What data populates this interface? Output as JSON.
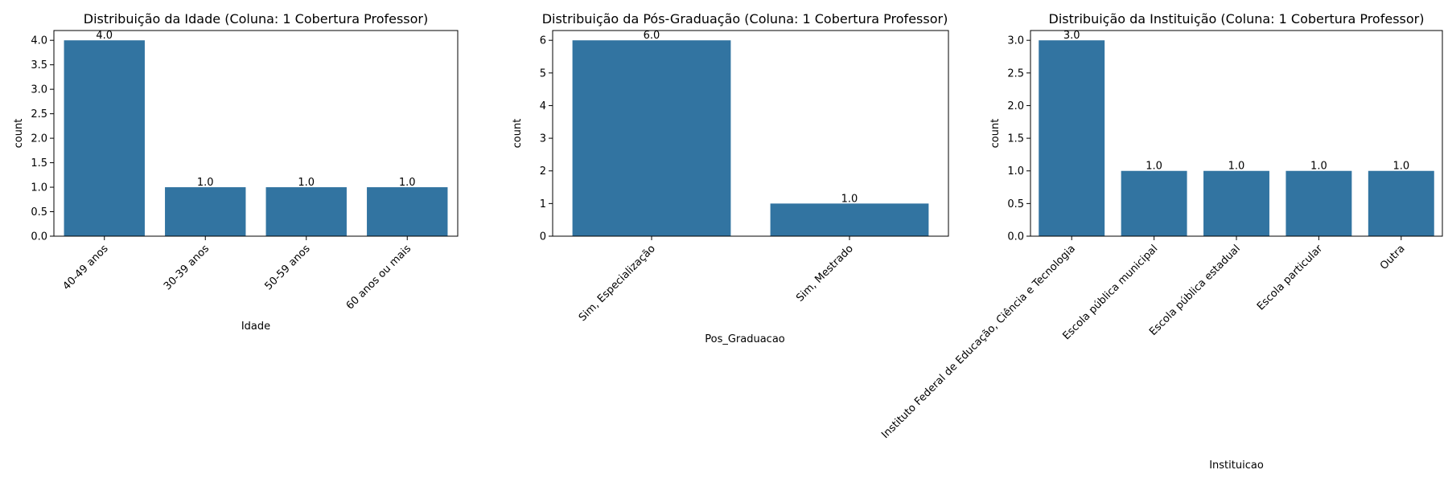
{
  "chart_data": [
    {
      "type": "bar",
      "title": "Distribuição da Idade (Coluna: 1 Cobertura Professor)",
      "xlabel": "Idade",
      "ylabel": "count",
      "categories": [
        "40-49 anos",
        "30-39 anos",
        "50-59 anos",
        "60 anos ou mais"
      ],
      "values": [
        4.0,
        1.0,
        1.0,
        1.0
      ],
      "data_labels": [
        "4.0",
        "1.0",
        "1.0",
        "1.0"
      ],
      "ylim": [
        0,
        4.2
      ],
      "yticks": [
        0.0,
        0.5,
        1.0,
        1.5,
        2.0,
        2.5,
        3.0,
        3.5,
        4.0
      ],
      "ytick_labels": [
        "0.0",
        "0.5",
        "1.0",
        "1.5",
        "2.0",
        "2.5",
        "3.0",
        "3.5",
        "4.0"
      ],
      "bar_color": "#3274a1",
      "grid": false,
      "x_tick_rotation": 45
    },
    {
      "type": "bar",
      "title": "Distribuição da Pós-Graduação (Coluna: 1 Cobertura Professor)",
      "xlabel": "Pos_Graduacao",
      "ylabel": "count",
      "categories": [
        "Sim, Especialização",
        "Sim, Mestrado"
      ],
      "values": [
        6.0,
        1.0
      ],
      "data_labels": [
        "6.0",
        "1.0"
      ],
      "ylim": [
        0,
        6.3
      ],
      "yticks": [
        0,
        1,
        2,
        3,
        4,
        5,
        6
      ],
      "ytick_labels": [
        "0",
        "1",
        "2",
        "3",
        "4",
        "5",
        "6"
      ],
      "bar_color": "#3274a1",
      "grid": false,
      "x_tick_rotation": 45
    },
    {
      "type": "bar",
      "title": "Distribuição da Instituição (Coluna: 1 Cobertura Professor)",
      "xlabel": "Instituicao",
      "ylabel": "count",
      "categories": [
        "Instituto Federal de Educação, Ciência e Tecnologia",
        "Escola pública municipal",
        "Escola pública estadual",
        "Escola particular",
        "Outra"
      ],
      "values": [
        3.0,
        1.0,
        1.0,
        1.0,
        1.0
      ],
      "data_labels": [
        "3.0",
        "1.0",
        "1.0",
        "1.0",
        "1.0"
      ],
      "ylim": [
        0,
        3.15
      ],
      "yticks": [
        0.0,
        0.5,
        1.0,
        1.5,
        2.0,
        2.5,
        3.0
      ],
      "ytick_labels": [
        "0.0",
        "0.5",
        "1.0",
        "1.5",
        "2.0",
        "2.5",
        "3.0"
      ],
      "bar_color": "#3274a1",
      "grid": false,
      "x_tick_rotation": 45
    }
  ]
}
